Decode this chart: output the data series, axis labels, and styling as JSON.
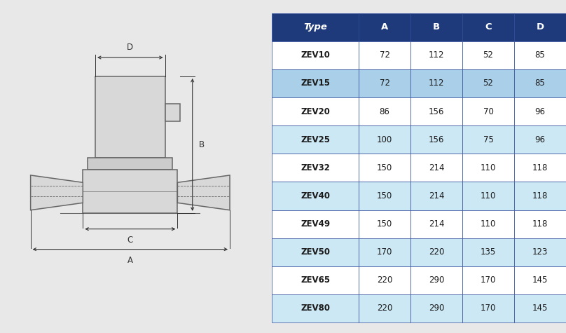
{
  "table_headers": [
    "Type",
    "A",
    "B",
    "C",
    "D"
  ],
  "table_rows": [
    [
      "ZEV10",
      "72",
      "112",
      "52",
      "85"
    ],
    [
      "ZEV15",
      "72",
      "112",
      "52",
      "85"
    ],
    [
      "ZEV20",
      "86",
      "156",
      "70",
      "96"
    ],
    [
      "ZEV25",
      "100",
      "156",
      "75",
      "96"
    ],
    [
      "ZEV32",
      "150",
      "214",
      "110",
      "118"
    ],
    [
      "ZEV40",
      "150",
      "214",
      "110",
      "118"
    ],
    [
      "ZEV49",
      "150",
      "214",
      "110",
      "118"
    ],
    [
      "ZEV50",
      "170",
      "220",
      "135",
      "123"
    ],
    [
      "ZEV65",
      "220",
      "290",
      "170",
      "145"
    ],
    [
      "ZEV80",
      "220",
      "290",
      "170",
      "145"
    ]
  ],
  "header_bg": "#1e3a7a",
  "header_fg": "#ffffff",
  "row_colors": [
    "#ffffff",
    "#cce8f4",
    "#ffffff",
    "#cce8f4",
    "#ffffff",
    "#cce8f4",
    "#ffffff",
    "#cce8f4",
    "#ffffff",
    "#cce8f4"
  ],
  "highlighted_row": 1,
  "highlighted_bg": "#aacfe8",
  "bg_color": "#e8e8e8",
  "diagram_bg": "#e8e8e8",
  "table_border": "#2e4a9a",
  "lc": "#666666",
  "dim_color": "#333333"
}
